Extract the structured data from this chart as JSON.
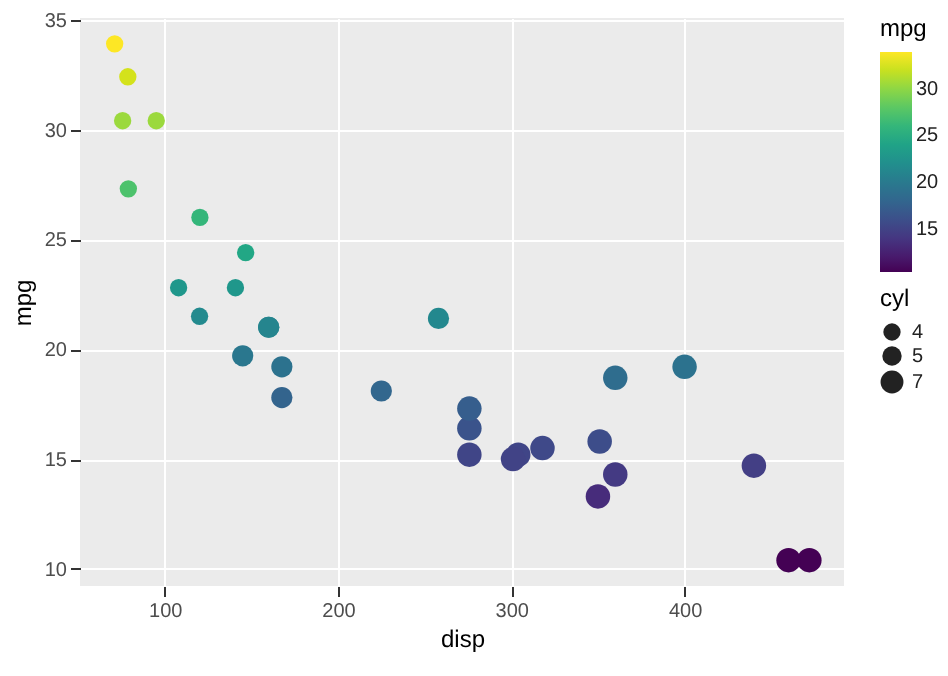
{
  "chart_data": {
    "type": "bubble",
    "xlabel": "disp",
    "ylabel": "mpg",
    "legend_title": "cyl",
    "clabel": "mpg",
    "x": [
      160,
      160,
      108,
      258,
      360,
      225,
      360,
      146.7,
      140.8,
      167.6,
      167.6,
      275.8,
      275.8,
      275.8,
      472,
      460,
      440,
      78.7,
      75.7,
      71.1,
      120.1,
      318,
      304,
      350,
      400,
      79,
      120.3,
      95.1,
      351,
      145,
      301
    ],
    "values": [
      21,
      21,
      22.8,
      21.4,
      18.7,
      18.1,
      14.3,
      24.4,
      22.8,
      19.2,
      17.8,
      16.4,
      17.3,
      15.2,
      10.4,
      10.4,
      14.7,
      32.4,
      30.4,
      33.9,
      21.5,
      15.5,
      15.2,
      13.3,
      19.2,
      27.3,
      26,
      30.4,
      15.8,
      19.7,
      15
    ],
    "sizes": [
      6,
      6,
      4,
      6,
      8,
      6,
      8,
      4,
      4,
      6,
      6,
      8,
      8,
      8,
      8,
      8,
      8,
      4,
      4,
      4,
      4,
      8,
      8,
      8,
      8,
      4,
      4,
      4,
      8,
      6,
      8
    ],
    "size_legend": [
      4,
      5,
      7
    ],
    "cvalues": [
      21,
      21,
      22.8,
      21.4,
      18.7,
      18.1,
      14.3,
      24.4,
      22.8,
      19.2,
      17.8,
      16.4,
      17.3,
      15.2,
      10.4,
      10.4,
      14.7,
      32.4,
      30.4,
      33.9,
      21.5,
      15.5,
      15.2,
      13.3,
      19.2,
      27.3,
      26,
      30.4,
      15.8,
      19.7,
      15
    ],
    "clim": [
      10.4,
      33.9
    ],
    "cticks": [
      15,
      20,
      25,
      30
    ],
    "xlim": [
      51.1,
      492
    ],
    "xticks": [
      100,
      200,
      300,
      400
    ],
    "ylim": [
      9.225,
      35.075
    ],
    "yticks": [
      10,
      15,
      20,
      25,
      30,
      35
    ],
    "grid": true
  }
}
